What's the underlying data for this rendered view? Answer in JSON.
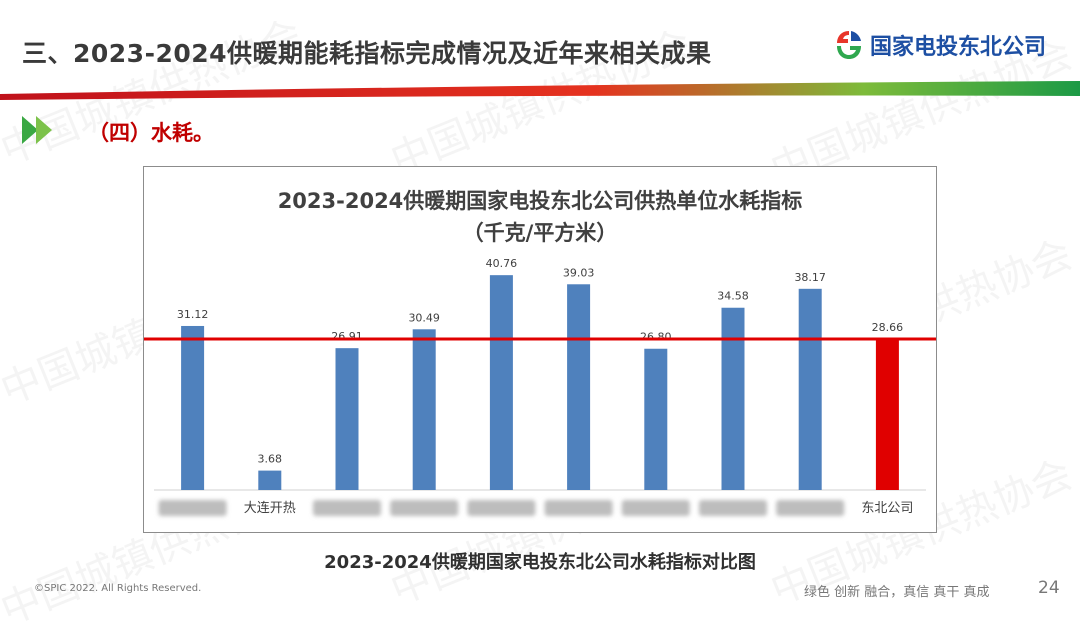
{
  "slide": {
    "title": "三、2023-2024供暖期能耗指标完成情况及近年来相关成果",
    "section": "（四）水耗。",
    "logo_text": "国家电投东北公司",
    "caption": "2023-2024供暖期国家电投东北公司水耗指标对比图",
    "footer_copyright": "©SPIC 2022. All Rights Reserved.",
    "footer_slogan": "绿色 创新 融合，真信 真干 真成",
    "page_number": "24",
    "watermark": "中国城镇供热协会"
  },
  "colors": {
    "bar": "#4f81bd",
    "highlight_bar": "#e00000",
    "reference_line": "#e00000",
    "title_text": "#3a3a3a",
    "section_text": "#c00000",
    "logo_blue": "#1d4fa3"
  },
  "icons": {
    "section": "double-chevron-right-icon",
    "logo": "spic-logo-icon"
  },
  "chart_data": {
    "type": "bar",
    "title_line1": "2023-2024供暖期国家电投东北公司供热单位水耗指标",
    "title_line2": "（千克/平方米）",
    "categories": [
      "",
      "大连开热",
      "",
      "",
      "",
      "",
      "",
      "",
      "",
      "东北公司"
    ],
    "values": [
      31.12,
      3.68,
      26.91,
      30.49,
      40.76,
      39.03,
      26.8,
      34.58,
      38.17,
      28.66
    ],
    "value_labels": [
      "31.12",
      "3.68",
      "26.91",
      "30.49",
      "40.76",
      "39.03",
      "26.80",
      "34.58",
      "38.17",
      "28.66"
    ],
    "highlight_index": 9,
    "reference_value": 28.66,
    "ylim": [
      0,
      48
    ],
    "grid": false,
    "legend": "none"
  }
}
